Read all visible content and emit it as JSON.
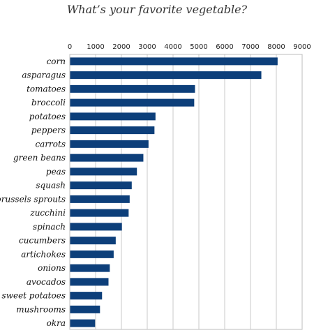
{
  "chart_data": {
    "type": "bar",
    "orientation": "horizontal",
    "title": "What’s your favorite vegetable?",
    "categories": [
      "corn",
      "asparagus",
      "tomatoes",
      "broccoli",
      "potatoes",
      "peppers",
      "carrots",
      "green beans",
      "peas",
      "squash",
      "brussels sprouts",
      "zucchini",
      "spinach",
      "cucumbers",
      "artichokes",
      "onions",
      "avocados",
      "sweet potatoes",
      "mushrooms",
      "okra"
    ],
    "values": [
      8050,
      7420,
      4850,
      4820,
      3320,
      3280,
      3050,
      2850,
      2600,
      2400,
      2320,
      2280,
      2020,
      1780,
      1700,
      1550,
      1500,
      1250,
      1170,
      980
    ],
    "xlim": [
      0,
      9000
    ],
    "xticks": [
      0,
      1000,
      2000,
      3000,
      4000,
      5000,
      6000,
      7000,
      8000,
      9000
    ],
    "x_axis_position": "top",
    "grid": true,
    "bar_color": "#0d3f7a",
    "grid_color": "#c8c8c8"
  }
}
